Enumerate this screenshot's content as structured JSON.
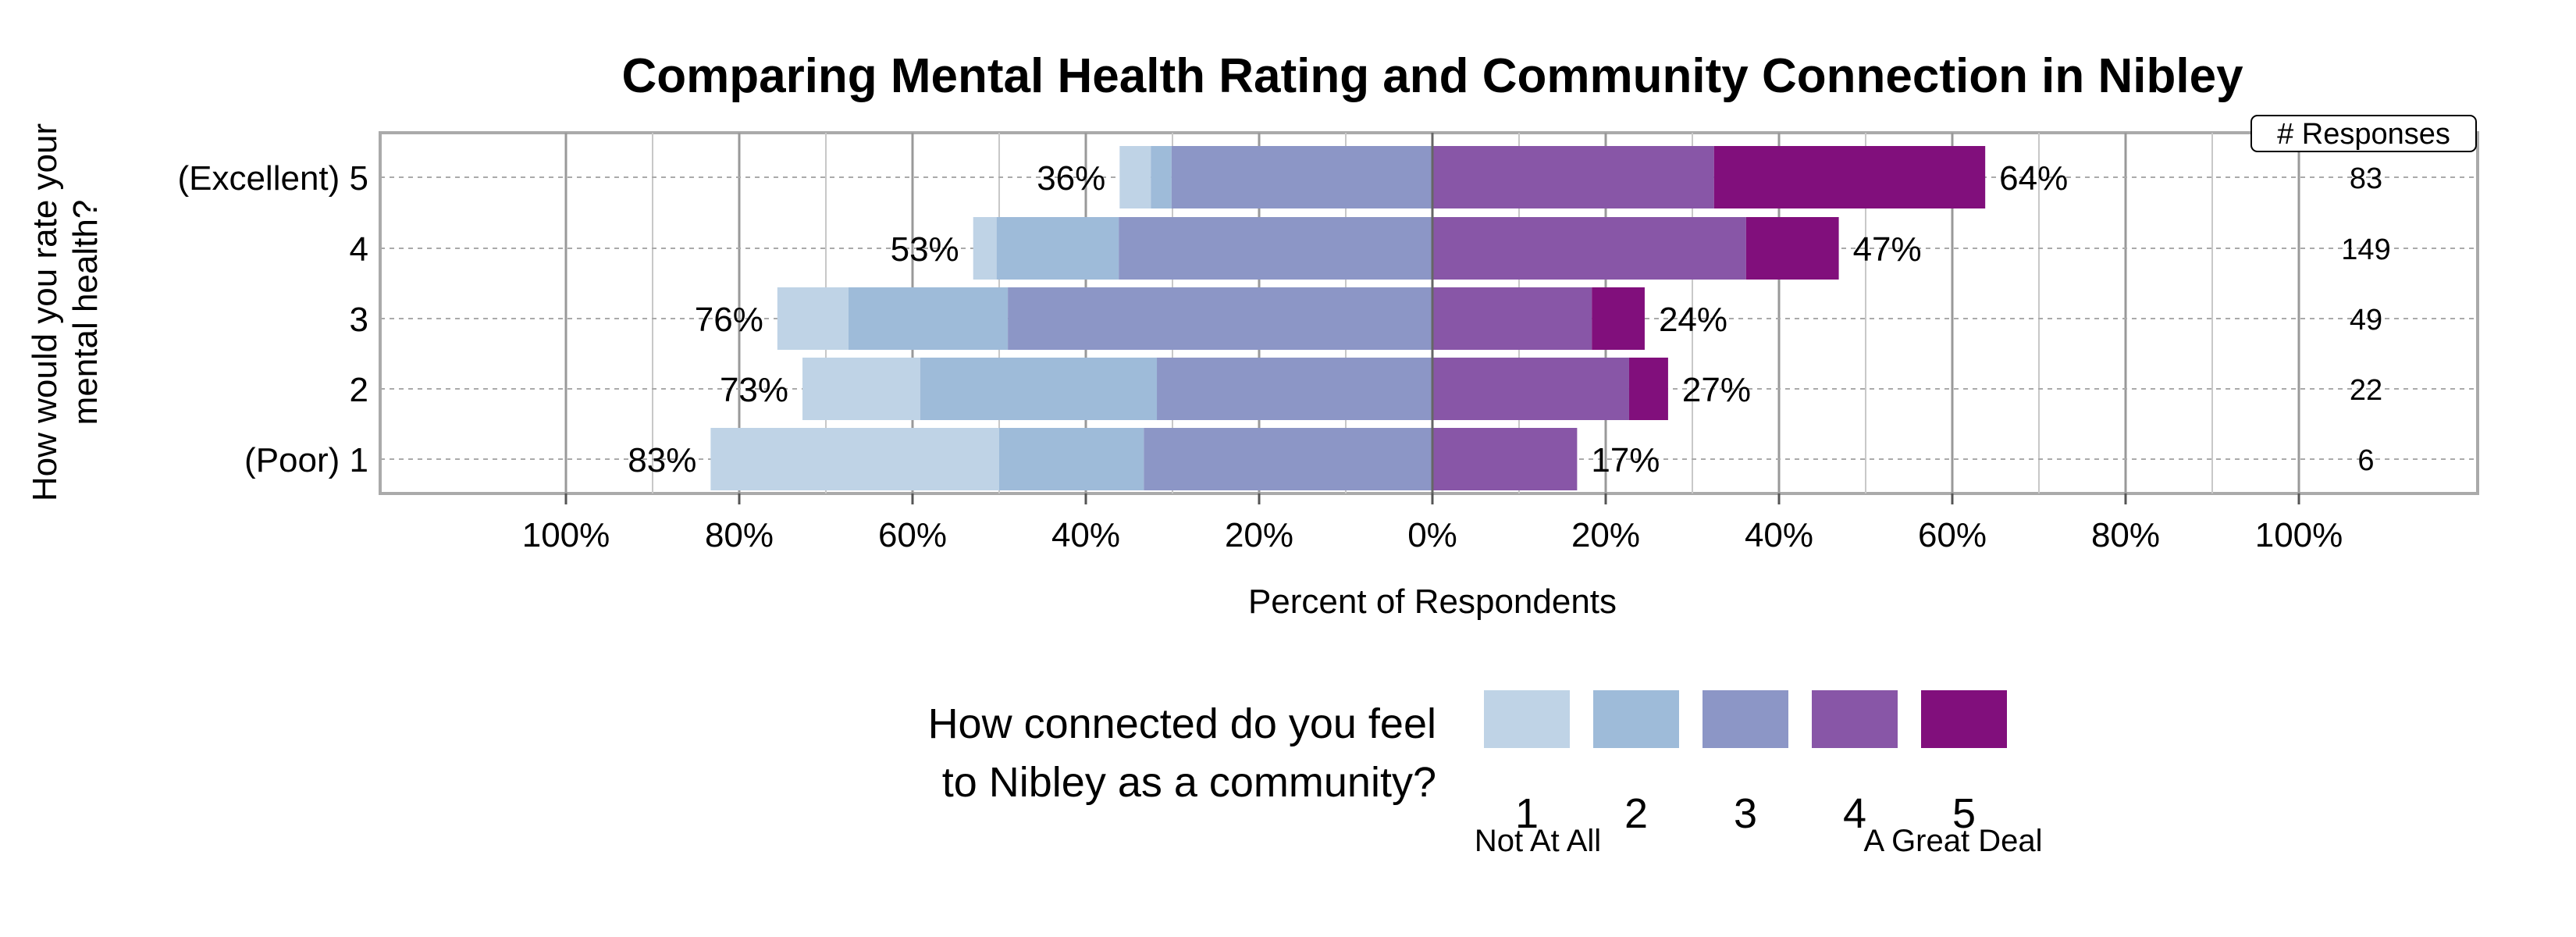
{
  "chart_data": {
    "type": "bar",
    "subtype": "diverging-stacked-horizontal",
    "title": "Comparing Mental Health Rating and Community Connection in Nibley",
    "ylabel": [
      "How would you rate your",
      "mental health?"
    ],
    "xlabel": "Percent of Respondents",
    "xlim": [
      -100,
      100
    ],
    "x_ticks": [
      "100%",
      "80%",
      "60%",
      "40%",
      "20%",
      "0%",
      "20%",
      "40%",
      "60%",
      "80%",
      "100%"
    ],
    "grid": true,
    "categories": [
      "(Excellent) 5",
      "4",
      "3",
      "2",
      "(Poor) 1"
    ],
    "responses_header": "# Responses",
    "responses": [
      83,
      149,
      49,
      22,
      6
    ],
    "left_totals": [
      "36%",
      "53%",
      "76%",
      "73%",
      "83%"
    ],
    "right_totals": [
      "64%",
      "47%",
      "24%",
      "27%",
      "17%"
    ],
    "series": [
      {
        "name": "1",
        "values": [
          3.6,
          2.7,
          8.2,
          13.6,
          33.3
        ]
      },
      {
        "name": "2",
        "values": [
          2.4,
          14.1,
          18.4,
          27.3,
          16.7
        ]
      },
      {
        "name": "3",
        "values": [
          30.1,
          36.2,
          49.0,
          31.8,
          33.3
        ]
      },
      {
        "name": "4",
        "values": [
          32.5,
          36.2,
          18.4,
          22.7,
          16.7
        ]
      },
      {
        "name": "5",
        "values": [
          31.3,
          10.7,
          6.1,
          4.5,
          0
        ]
      }
    ],
    "colors": [
      "#bfd3e6",
      "#9ebbd9",
      "#8c96c6",
      "#8856a7",
      "#810f7c"
    ],
    "legend": {
      "title": [
        "How connected do you feel",
        "to Nibley as a community?"
      ],
      "labels": [
        "1",
        "2",
        "3",
        "4",
        "5"
      ],
      "low_label": "Not At All",
      "high_label": "A Great Deal",
      "placement": "bottom"
    }
  }
}
